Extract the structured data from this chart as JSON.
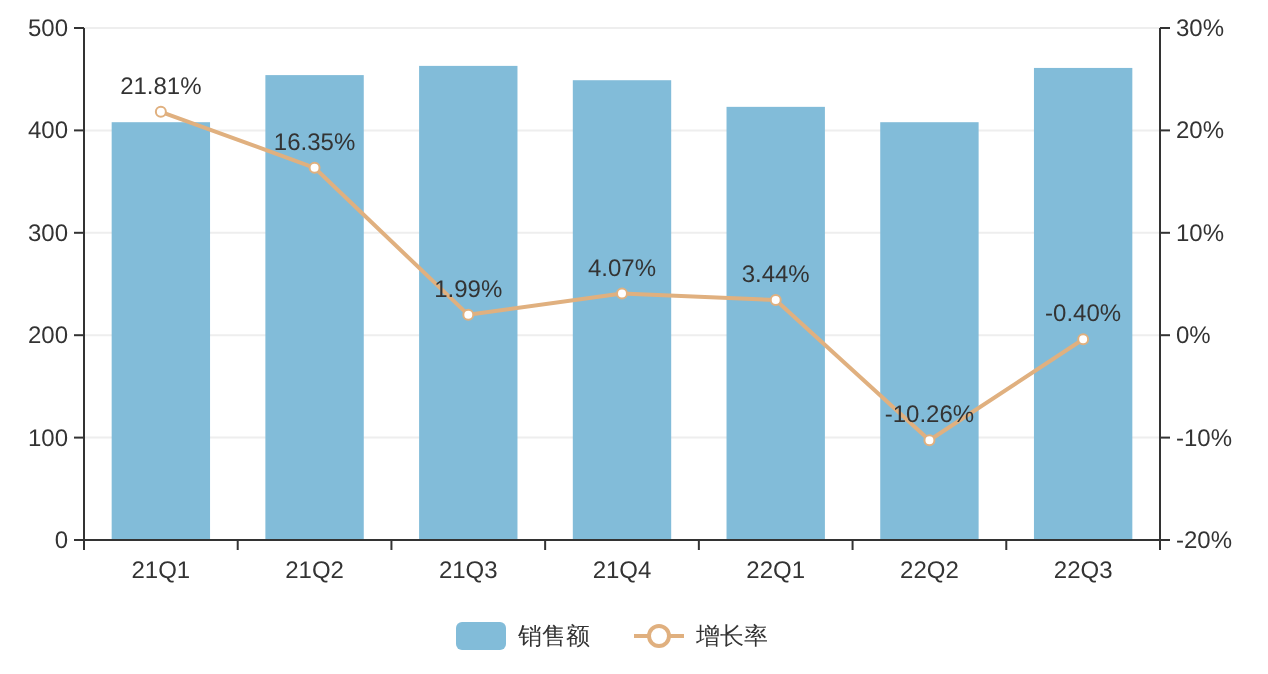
{
  "chart_data": {
    "type": "bar",
    "categories": [
      "21Q1",
      "21Q2",
      "21Q3",
      "21Q4",
      "22Q1",
      "22Q2",
      "22Q3"
    ],
    "series": [
      {
        "name": "销售额",
        "color": "#82bcd9",
        "values": [
          408,
          454,
          463,
          449,
          423,
          408,
          461
        ]
      },
      {
        "name": "增长率",
        "type": "line",
        "axis": "y2",
        "color": "#e0b07f",
        "marker": "circle",
        "values": [
          21.81,
          16.35,
          1.99,
          4.07,
          3.44,
          -10.26,
          -0.4
        ],
        "value_labels": [
          "21.81%",
          "16.35%",
          "1.99%",
          "4.07%",
          "3.44%",
          "-10.26%",
          "-0.40%"
        ]
      }
    ],
    "ylim": [
      0,
      500
    ],
    "yticks": [
      0,
      100,
      200,
      300,
      400,
      500
    ],
    "y2lim": [
      -20,
      30
    ],
    "y2ticks": [
      {
        "value": -20,
        "label": "-20%"
      },
      {
        "value": -10,
        "label": "-10%"
      },
      {
        "value": 0,
        "label": "0%"
      },
      {
        "value": 10,
        "label": "10%"
      },
      {
        "value": 20,
        "label": "20%"
      },
      {
        "value": 30,
        "label": "30%"
      }
    ],
    "grid": "y",
    "legend": "bottom"
  }
}
